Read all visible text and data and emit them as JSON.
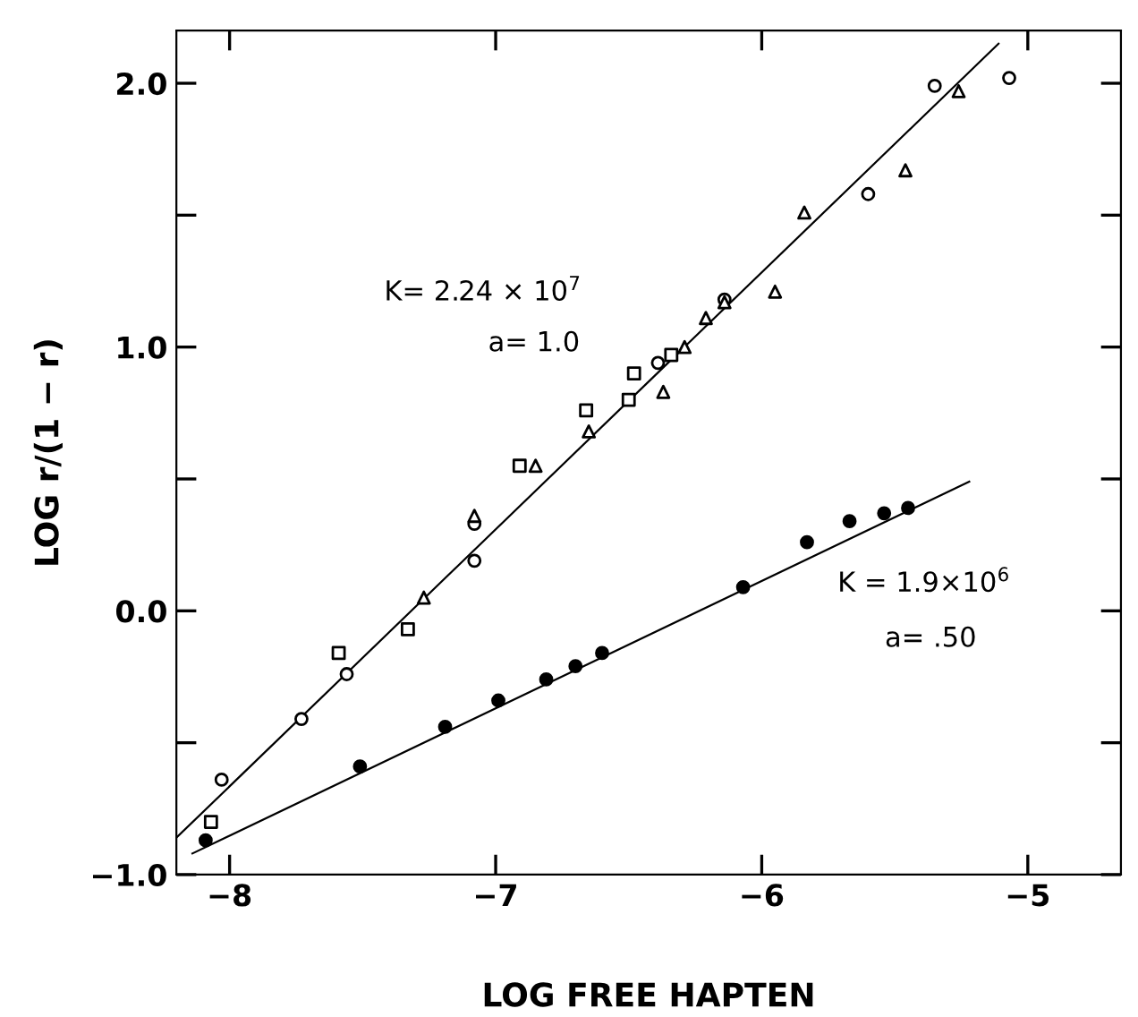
{
  "chart_data": {
    "type": "scatter",
    "xlabel": "LOG FREE HAPTEN",
    "ylabel": "LOG r/(1 − r)",
    "xlim": [
      -8.2,
      -4.65
    ],
    "ylim": [
      -1.0,
      2.2
    ],
    "xticks": [
      {
        "value": -8,
        "label": "−8"
      },
      {
        "value": -7,
        "label": "−7"
      },
      {
        "value": -6,
        "label": "−6"
      },
      {
        "value": -5,
        "label": "−5"
      }
    ],
    "yticks": [
      {
        "value": -1.0,
        "label": "−1.0"
      },
      {
        "value": -0.5,
        "label": null
      },
      {
        "value": 0.0,
        "label": "0.0"
      },
      {
        "value": 0.5,
        "label": null
      },
      {
        "value": 1.0,
        "label": "1.0"
      },
      {
        "value": 1.5,
        "label": null
      },
      {
        "value": 2.0,
        "label": "2.0"
      }
    ],
    "grid": false,
    "legend": false,
    "series": [
      {
        "marker": "circle",
        "color": "#ffffff",
        "x": [
          -8.03,
          -7.73,
          -7.56,
          -7.08,
          -7.08,
          -6.39,
          -6.14,
          -5.6,
          -5.35,
          -5.07
        ],
        "values": [
          -0.64,
          -0.41,
          -0.24,
          0.19,
          0.33,
          0.94,
          1.18,
          1.58,
          1.99,
          2.02
        ]
      },
      {
        "marker": "triangle",
        "color": "#ffffff",
        "x": [
          -7.27,
          -7.08,
          -6.85,
          -6.65,
          -6.37,
          -6.29,
          -6.21,
          -6.14,
          -5.95,
          -5.84,
          -5.46,
          -5.26
        ],
        "values": [
          0.05,
          0.36,
          0.55,
          0.68,
          0.83,
          1.0,
          1.11,
          1.17,
          1.21,
          1.51,
          1.67,
          1.97
        ]
      },
      {
        "marker": "square",
        "color": "#ffffff",
        "x": [
          -8.07,
          -7.59,
          -7.33,
          -6.91,
          -6.66,
          -6.5,
          -6.48,
          -6.34
        ],
        "values": [
          -0.8,
          -0.16,
          -0.07,
          0.55,
          0.76,
          0.8,
          0.9,
          0.97
        ]
      },
      {
        "marker": "circle",
        "color": "#000000",
        "x": [
          -8.09,
          -7.51,
          -7.19,
          -6.99,
          -6.81,
          -6.7,
          -6.6,
          -6.07,
          -5.83,
          -5.67,
          -5.54,
          -5.45
        ],
        "values": [
          -0.87,
          -0.59,
          -0.44,
          -0.34,
          -0.26,
          -0.21,
          -0.16,
          0.09,
          0.26,
          0.34,
          0.37,
          0.39
        ]
      },
      {
        "type": "line",
        "marker": "none",
        "color": "#000000",
        "x": [
          -8.2,
          -5.11
        ],
        "values": [
          -0.86,
          2.15
        ]
      },
      {
        "type": "line",
        "marker": "none",
        "color": "#000000",
        "x": [
          -8.14,
          -5.22
        ],
        "values": [
          -0.92,
          0.49
        ]
      }
    ],
    "annotations": [
      "K= 2.24 × 10$^{7}$",
      "a= 1.0",
      "K = 1.9×10$^{6}$",
      "a= .50"
    ]
  }
}
